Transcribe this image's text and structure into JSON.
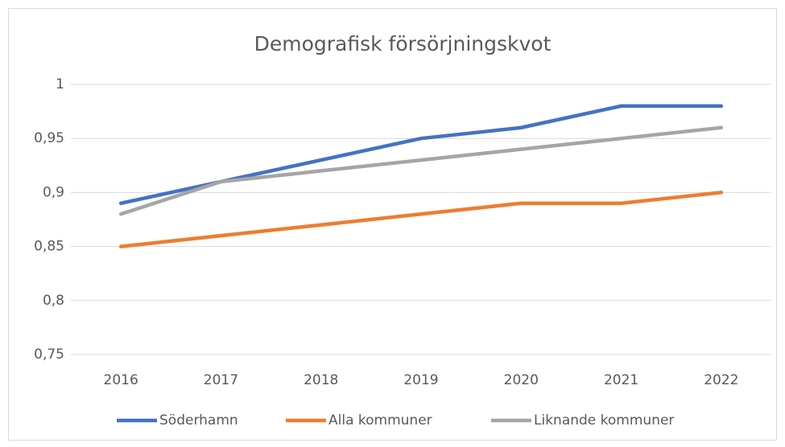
{
  "chart_data": {
    "type": "line",
    "title": "Demografisk försörjningskvot",
    "categories": [
      "2016",
      "2017",
      "2018",
      "2019",
      "2020",
      "2021",
      "2022"
    ],
    "series": [
      {
        "name": "Söderhamn",
        "color": "#4472c4",
        "values": [
          0.89,
          0.91,
          0.93,
          0.95,
          0.96,
          0.98,
          0.98
        ]
      },
      {
        "name": "Alla kommuner",
        "color": "#ed7d31",
        "values": [
          0.85,
          0.86,
          0.87,
          0.88,
          0.89,
          0.89,
          0.9
        ]
      },
      {
        "name": "Liknande kommuner",
        "color": "#a5a5a5",
        "values": [
          0.88,
          0.91,
          0.92,
          0.93,
          0.94,
          0.95,
          0.96
        ]
      }
    ],
    "ylim": [
      0.75,
      1
    ],
    "yticks": [
      {
        "value": 0.75,
        "label": "0,75"
      },
      {
        "value": 0.8,
        "label": "0,8"
      },
      {
        "value": 0.85,
        "label": "0,85"
      },
      {
        "value": 0.9,
        "label": "0,9"
      },
      {
        "value": 0.95,
        "label": "0,95"
      },
      1
    ],
    "grid": true,
    "legend": "bottom"
  }
}
